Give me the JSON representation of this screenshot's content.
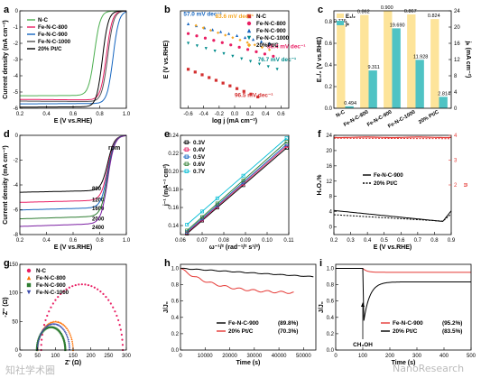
{
  "watermark": {
    "left": "知社学术圈",
    "right": "NanoResearch"
  },
  "chart_data": [
    {
      "panel": "a",
      "type": "line",
      "xlabel": "E (V vs.RHE)",
      "ylabel": "Current density (mA cm⁻²)",
      "xlim": [
        0.2,
        1.0
      ],
      "ylim": [
        -6,
        0
      ],
      "xticks": [
        0.2,
        0.4,
        0.6,
        0.8,
        1.0
      ],
      "yticks": [
        0,
        -1,
        -2,
        -3,
        -4,
        -5,
        -6
      ],
      "series": [
        {
          "name": "N-C",
          "color": "#4caf50",
          "e_half": 0.76,
          "limit": -5.2
        },
        {
          "name": "Fe-N-C-800",
          "color": "#e91e63",
          "e_half": 0.85,
          "limit": -5.5
        },
        {
          "name": "Fe-N-C-900",
          "color": "#1565c0",
          "e_half": 0.9,
          "limit": -5.7
        },
        {
          "name": "Fe-N-C-1000",
          "color": "#555555",
          "e_half": 0.86,
          "limit": -5.6
        },
        {
          "name": "20% Pt/C",
          "color": "#000000",
          "e_half": 0.82,
          "limit": -5.9
        }
      ]
    },
    {
      "panel": "b",
      "type": "scatter",
      "xlabel": "log j (mA cm⁻²)",
      "ylabel": "E (V vs.RHE)",
      "xlim": [
        -0.7,
        0.7
      ],
      "ylim": [
        0.7,
        1.0
      ],
      "xticks": [
        -0.6,
        -0.4,
        -0.2,
        0.0,
        0.2,
        0.4,
        0.6
      ],
      "series": [
        {
          "name": "N-C",
          "color": "#d32f2f",
          "marker": "square",
          "x0": -0.6,
          "y0": 0.82,
          "x1": 0.3,
          "y1": 0.735,
          "label": "96.5 mV dec⁻¹"
        },
        {
          "name": "Fe-N-C-800",
          "color": "#e91e63",
          "marker": "circle",
          "x0": -0.6,
          "y0": 0.93,
          "x1": 0.5,
          "y1": 0.86,
          "label": "86.4 mV dec⁻¹"
        },
        {
          "name": "Fe-N-C-900",
          "color": "#1565c0",
          "marker": "triangle-up",
          "x0": -0.6,
          "y0": 0.96,
          "x1": 0.45,
          "y1": 0.9,
          "label": "57.0 mV dec⁻¹"
        },
        {
          "name": "Fe-N-C-1000",
          "color": "#008b8b",
          "marker": "triangle-down",
          "x0": -0.6,
          "y0": 0.9,
          "x1": 0.55,
          "y1": 0.82,
          "label": "76.7 mV dec⁻¹"
        },
        {
          "name": "20%Pt/C",
          "color": "#f5a623",
          "marker": "diamond",
          "x0": -0.5,
          "y0": 0.955,
          "x1": 0.45,
          "y1": 0.88,
          "label": "83.6 mV dec⁻¹"
        }
      ]
    },
    {
      "panel": "c",
      "type": "bar",
      "ylabel_left": "E₁/₂ (V vs.RHE)",
      "ylabel_right": "jₖ (mA cm⁻²)",
      "categories": [
        "N-C",
        "Fe-N-C-800",
        "Fe-N-C-900",
        "Fe-N-C-1000",
        "20% Pt/C"
      ],
      "series": [
        {
          "name": "E₁/₂",
          "color": "#fde49a",
          "values": [
            0.776,
            0.862,
            0.9,
            0.867,
            0.824
          ]
        },
        {
          "name": "jₖ",
          "color": "#4fc3c4",
          "values": [
            0.494,
            9.311,
            19.69,
            11.928,
            2.814
          ]
        }
      ],
      "ylim_left": [
        0.0,
        0.9
      ],
      "ylim_right": [
        0,
        24
      ],
      "yticks_left": [
        0.0,
        0.2,
        0.4,
        0.6,
        0.8
      ],
      "yticks_right": [
        0,
        4,
        8,
        12,
        16,
        20,
        24
      ]
    },
    {
      "panel": "d",
      "type": "line",
      "xlabel": "E (V vs.RHE)",
      "ylabel": "Current density (mA cm⁻²)",
      "xlim": [
        0.2,
        1.0
      ],
      "ylim": [
        -8,
        0
      ],
      "xticks": [
        0.2,
        0.4,
        0.6,
        0.8,
        1.0
      ],
      "yticks": [
        0,
        -2,
        -4,
        -6,
        -8
      ],
      "legend_title": "rpm",
      "series": [
        {
          "name": "800",
          "color": "#000000",
          "limit": -4.5
        },
        {
          "name": "1200",
          "color": "#e91e63",
          "limit": -5.3
        },
        {
          "name": "1600",
          "color": "#1565c0",
          "limit": -5.9
        },
        {
          "name": "2000",
          "color": "#2e7d32",
          "limit": -6.6
        },
        {
          "name": "2400",
          "color": "#7b1fa2",
          "limit": -7.2
        }
      ]
    },
    {
      "panel": "e",
      "type": "line",
      "xlabel": "ω⁻¹/² (rad⁻¹/² s¹/²)",
      "ylabel": "j⁻¹ (mA⁻¹ cm²)",
      "xlim": [
        0.06,
        0.11
      ],
      "ylim": [
        0.13,
        0.24
      ],
      "xticks": [
        0.06,
        0.07,
        0.08,
        0.09,
        0.1,
        0.11
      ],
      "yticks": [
        0.14,
        0.16,
        0.18,
        0.2,
        0.22,
        0.24
      ],
      "series": [
        {
          "name": "0.3V",
          "color": "#000000",
          "y0": 0.131,
          "y1": 0.226
        },
        {
          "name": "0.4V",
          "color": "#e91e63",
          "y0": 0.132,
          "y1": 0.228
        },
        {
          "name": "0.5V",
          "color": "#1565c0",
          "y0": 0.133,
          "y1": 0.23
        },
        {
          "name": "0.6V",
          "color": "#2e7d32",
          "y0": 0.1345,
          "y1": 0.233
        },
        {
          "name": "0.7V",
          "color": "#00bcd4",
          "y0": 0.141,
          "y1": 0.237
        }
      ]
    },
    {
      "panel": "f",
      "type": "line",
      "xlabel": "E (V vs.RHE)",
      "ylabel_left": "H₂O₂%",
      "ylabel_right": "n",
      "xlim": [
        0.2,
        0.9
      ],
      "ylim_left": [
        -2,
        24
      ],
      "ylim_right": [
        0,
        4
      ],
      "xticks": [
        0.2,
        0.3,
        0.4,
        0.5,
        0.6,
        0.7,
        0.8,
        0.9
      ],
      "yticks_left": [
        0,
        4,
        8,
        12,
        16,
        20,
        24
      ],
      "series": [
        {
          "name": "Fe-N-C-900",
          "color": "#000000"
        },
        {
          "name": "20% Pt/C",
          "color": "#000000",
          "dash": true
        }
      ]
    },
    {
      "panel": "g",
      "type": "scatter",
      "xlabel": "Z' (Ω)",
      "ylabel": "-Z'' (Ω)",
      "xlim": [
        0,
        300
      ],
      "ylim": [
        0,
        150
      ],
      "xticks": [
        0,
        50,
        100,
        150,
        200,
        250,
        300
      ],
      "yticks": [
        0,
        50,
        100,
        150
      ],
      "series": [
        {
          "name": "N-C",
          "color": "#e91e63",
          "center": 175,
          "radius": 115
        },
        {
          "name": "Fe-N-C-800",
          "color": "#ff6f00",
          "center": 100,
          "radius": 50
        },
        {
          "name": "Fe-N-C-900",
          "color": "#2e7d32",
          "center": 88,
          "radius": 40
        },
        {
          "name": "Fe-N-C-1000",
          "color": "#3949ab",
          "center": 95,
          "radius": 45
        }
      ]
    },
    {
      "panel": "h",
      "type": "line",
      "xlabel": "Time (s)",
      "ylabel": "J/J₀",
      "xlim": [
        0,
        55000
      ],
      "ylim": [
        0,
        1.05
      ],
      "xticks": [
        0,
        10000,
        20000,
        30000,
        40000,
        50000
      ],
      "yticks": [
        0.0,
        0.2,
        0.4,
        0.6,
        0.8,
        1.0
      ],
      "series": [
        {
          "name": "Fe-N-C-900",
          "note": "(89.8%)",
          "color": "#000000",
          "final": 0.898
        },
        {
          "name": "20% Pt/C",
          "note": "(70.3%)",
          "color": "#e53935",
          "final": 0.703
        }
      ]
    },
    {
      "panel": "i",
      "type": "line",
      "xlabel": "Time (s)",
      "ylabel": "J/J₀",
      "xlim": [
        0,
        500
      ],
      "ylim": [
        0,
        1.05
      ],
      "xticks": [
        0,
        100,
        200,
        300,
        400,
        500
      ],
      "yticks": [
        0.0,
        0.2,
        0.4,
        0.6,
        0.8,
        1.0
      ],
      "annotation": "CH₃OH",
      "series": [
        {
          "name": "Fe-N-C-900",
          "note": "(95.2%)",
          "color": "#e53935",
          "final": 0.952
        },
        {
          "name": "20% Pt/C",
          "note": "(83.5%)",
          "color": "#000000",
          "final": 0.835
        }
      ]
    }
  ]
}
